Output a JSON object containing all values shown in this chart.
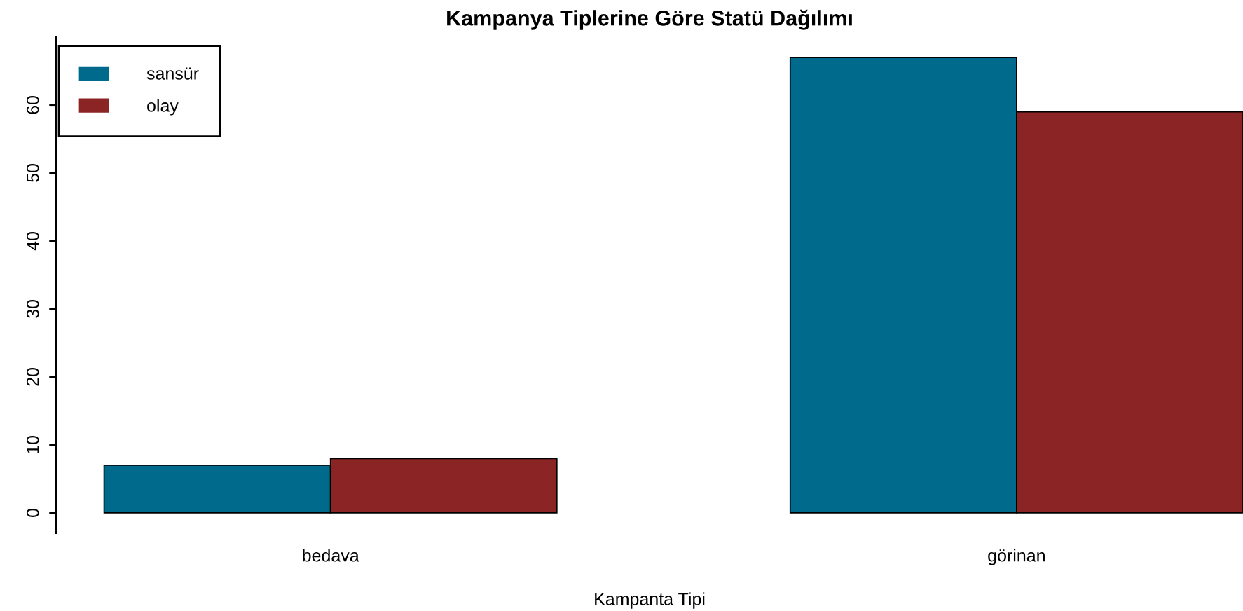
{
  "chart_data": {
    "type": "bar",
    "title": "Kampanya Tiplerine Göre Statü Dağılımı",
    "xlabel": "Kampanta Tipi",
    "categories": [
      "bedava",
      "görinan"
    ],
    "series": [
      {
        "name": "sansür",
        "color": "#006a8d",
        "values": [
          7,
          67
        ]
      },
      {
        "name": "olay",
        "color": "#8b2424",
        "values": [
          8,
          59
        ]
      }
    ],
    "ylim": [
      -3,
      70
    ],
    "yticks": [
      0,
      10,
      20,
      30,
      40,
      50,
      60
    ],
    "grid": false,
    "legend": "top left"
  }
}
